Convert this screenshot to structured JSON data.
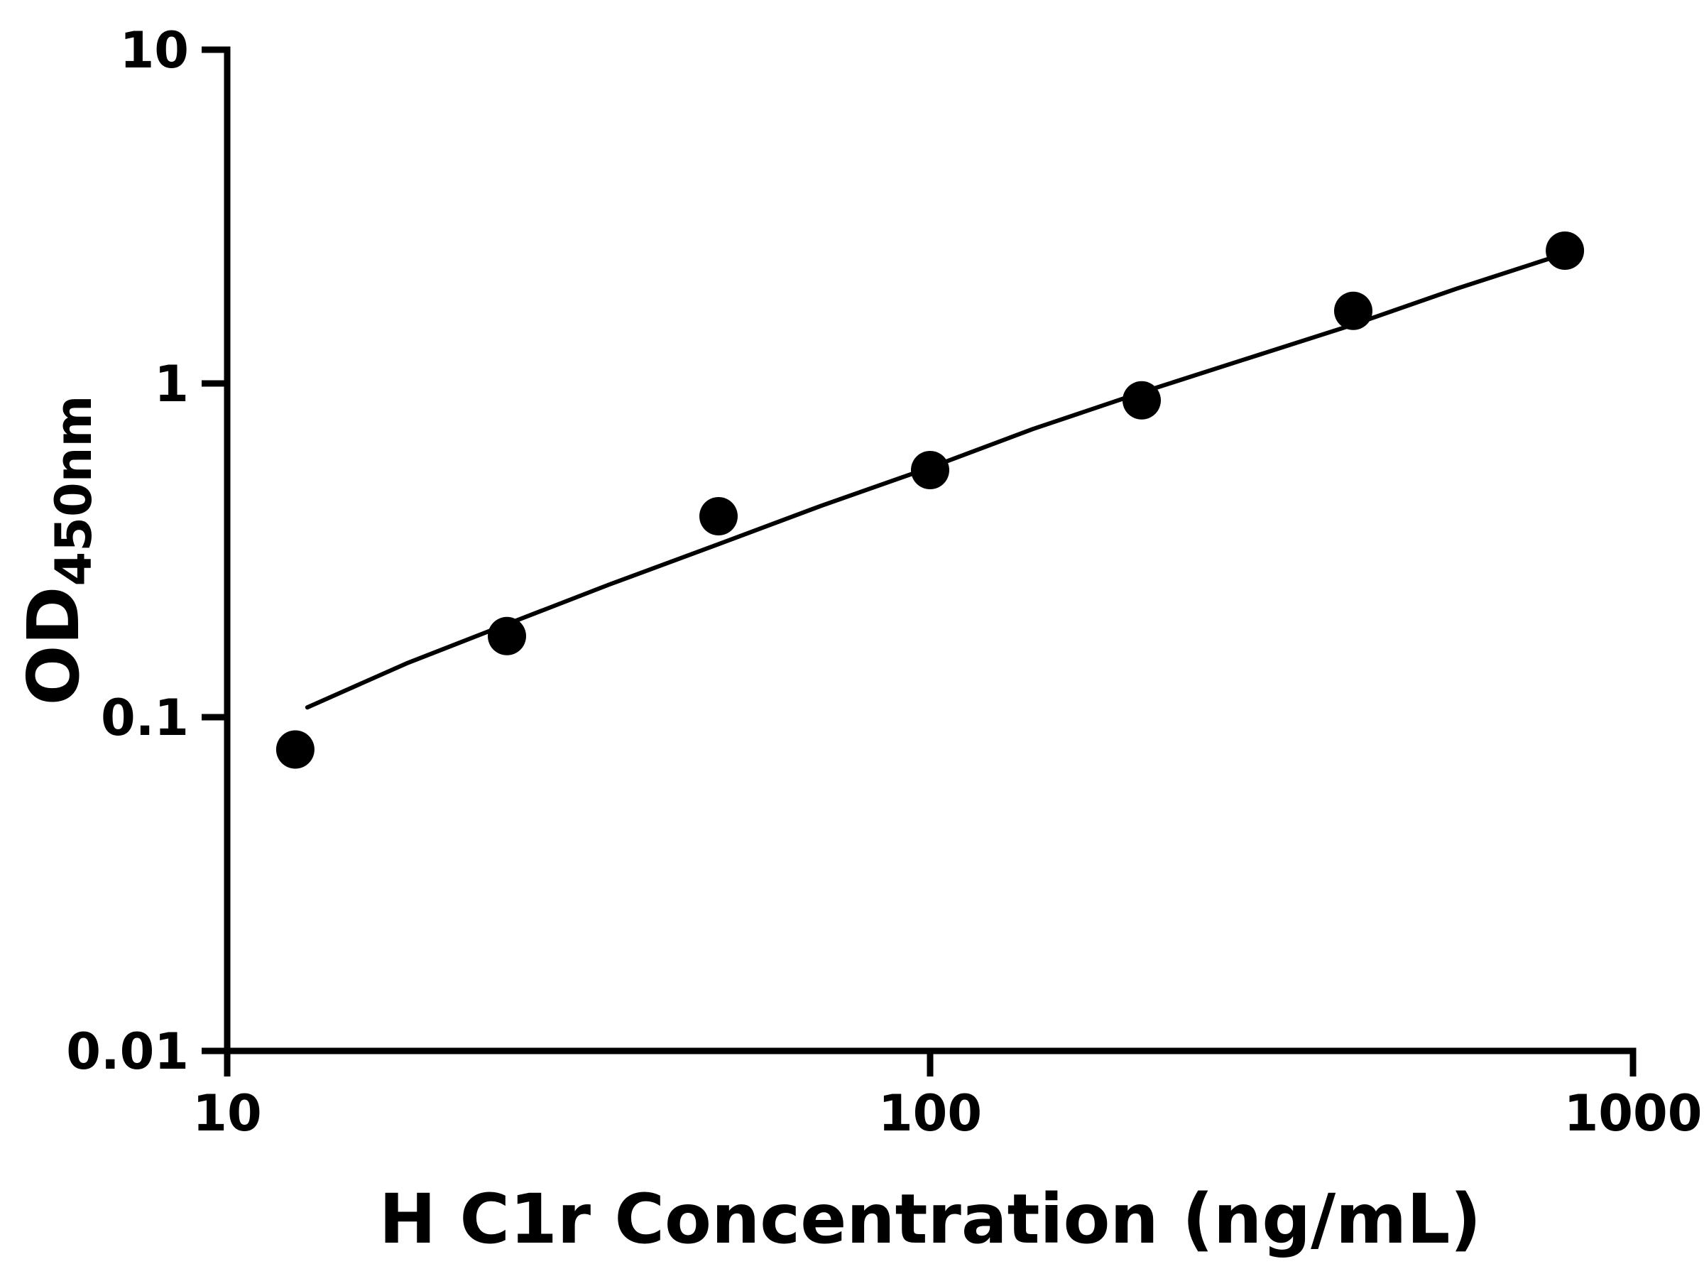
{
  "page": {
    "background_color": "#ffffff"
  },
  "chart_data": {
    "type": "scatter",
    "x_scale": "log",
    "y_scale": "log",
    "xlim": [
      10,
      1000
    ],
    "ylim": [
      0.01,
      10
    ],
    "x_ticks": [
      10,
      100,
      1000
    ],
    "x_tick_labels": [
      "10",
      "100",
      "1000"
    ],
    "y_ticks": [
      0.01,
      0.1,
      1,
      10
    ],
    "y_tick_labels": [
      "0.01",
      "0.1",
      "1",
      "10"
    ],
    "xlabel": "H C1r Concentration (ng/mL)",
    "ylabel_main": "OD",
    "ylabel_sub": "450nm",
    "legend": "none",
    "grid": "off",
    "axis_color": "#000000",
    "marker_color": "#000000",
    "line_color": "#000000",
    "points": {
      "x": [
        12.5,
        25,
        50,
        100,
        200,
        400,
        800
      ],
      "y": [
        0.08,
        0.175,
        0.4,
        0.55,
        0.89,
        1.65,
        2.5
      ]
    },
    "fit_curve": {
      "x": [
        13,
        18,
        25,
        35,
        50,
        70,
        100,
        140,
        200,
        280,
        400,
        560,
        800
      ],
      "y": [
        0.107,
        0.145,
        0.19,
        0.25,
        0.33,
        0.43,
        0.56,
        0.73,
        0.94,
        1.18,
        1.5,
        1.92,
        2.45
      ]
    }
  }
}
